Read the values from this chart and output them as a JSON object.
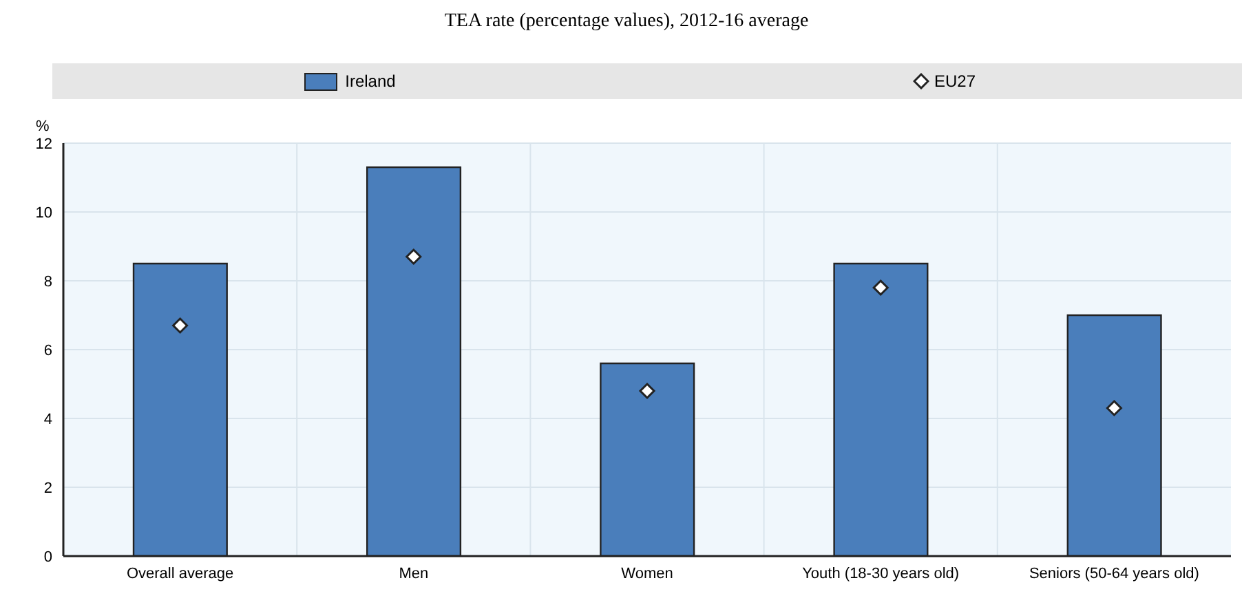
{
  "chart_data": {
    "type": "bar",
    "title": "TEA rate (percentage values), 2012-16 average",
    "ylabel": "%",
    "categories": [
      "Overall average",
      "Men",
      "Women",
      "Youth (18-30 years old)",
      "Seniors (50-64 years old)"
    ],
    "series": [
      {
        "name": "Ireland",
        "color": "#4a7ebb",
        "values": [
          8.5,
          11.3,
          5.6,
          8.5,
          7.0
        ]
      },
      {
        "name": "EU27",
        "type": "scatter",
        "marker": "diamond",
        "color": "#ffffff",
        "values": [
          6.7,
          8.7,
          4.8,
          7.8,
          4.3
        ]
      }
    ],
    "ylim": [
      0,
      12
    ],
    "yticks": [
      0,
      2,
      4,
      6,
      8,
      10,
      12
    ],
    "grid": true,
    "legend": "top"
  }
}
